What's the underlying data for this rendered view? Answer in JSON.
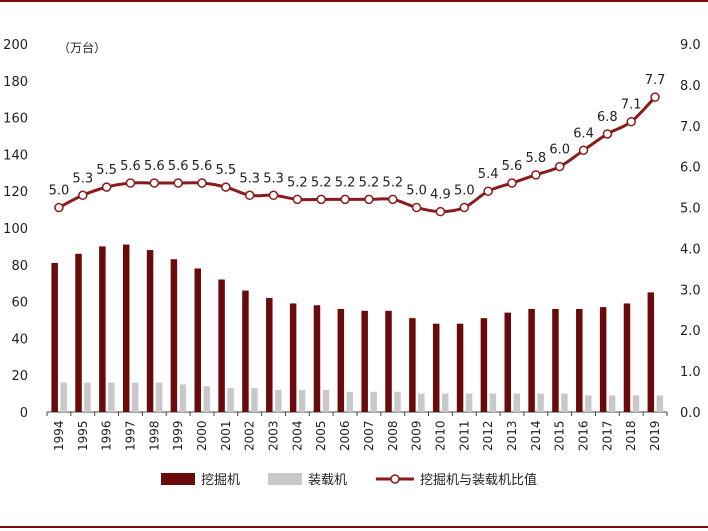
{
  "chart_data": {
    "type": "bar",
    "unit_label": "（万台）",
    "categories": [
      "1994",
      "1995",
      "1996",
      "1997",
      "1998",
      "1999",
      "2000",
      "2001",
      "2002",
      "2003",
      "2004",
      "2005",
      "2006",
      "2007",
      "2008",
      "2009",
      "2010",
      "2011",
      "2012",
      "2013",
      "2014",
      "2015",
      "2016",
      "2017",
      "2018",
      "2019"
    ],
    "series": [
      {
        "name": "挖掘机",
        "type": "bar",
        "axis": "left",
        "color": "#6b0a0a",
        "values": [
          81,
          86,
          90,
          91,
          88,
          83,
          78,
          72,
          66,
          62,
          59,
          58,
          56,
          55,
          55,
          51,
          48,
          48,
          51,
          54,
          56,
          56,
          56,
          57,
          59,
          65
        ]
      },
      {
        "name": "装载机",
        "type": "bar",
        "axis": "left",
        "color": "#c8c8c8",
        "values": [
          16,
          16,
          16,
          16,
          16,
          15,
          14,
          13,
          13,
          12,
          12,
          12,
          11,
          11,
          11,
          10,
          10,
          10,
          10,
          10,
          10,
          10,
          9,
          9,
          9,
          9
        ]
      },
      {
        "name": "挖掘机与装载机比值",
        "type": "line",
        "axis": "right",
        "color": "#8b1a1a",
        "values": [
          5.0,
          5.3,
          5.5,
          5.6,
          5.6,
          5.6,
          5.6,
          5.5,
          5.3,
          5.3,
          5.2,
          5.2,
          5.2,
          5.2,
          5.2,
          5.0,
          4.9,
          5.0,
          5.4,
          5.6,
          5.8,
          6.0,
          6.4,
          6.8,
          7.1,
          7.7
        ],
        "labels": [
          "5.0",
          "5.3",
          "5.5",
          "5.6",
          "5.6",
          "5.6",
          "5.6",
          "5.5",
          "5.3",
          "5.3",
          "5.2",
          "5.2",
          "5.2",
          "5.2",
          "5.2",
          "5.0",
          "4.9",
          "5.0",
          "5.4",
          "5.6",
          "5.8",
          "6.0",
          "6.4",
          "6.8",
          "7.1",
          "7.7"
        ]
      }
    ],
    "y_left": {
      "min": 0,
      "max": 200,
      "ticks": [
        "0",
        "20",
        "40",
        "60",
        "80",
        "100",
        "120",
        "140",
        "160",
        "180",
        "200"
      ]
    },
    "y_right": {
      "min": 0,
      "max": 9,
      "ticks": [
        "0.0",
        "1.0",
        "2.0",
        "3.0",
        "4.0",
        "5.0",
        "6.0",
        "7.0",
        "8.0",
        "9.0"
      ]
    },
    "grid": false,
    "legend_position": "bottom"
  }
}
